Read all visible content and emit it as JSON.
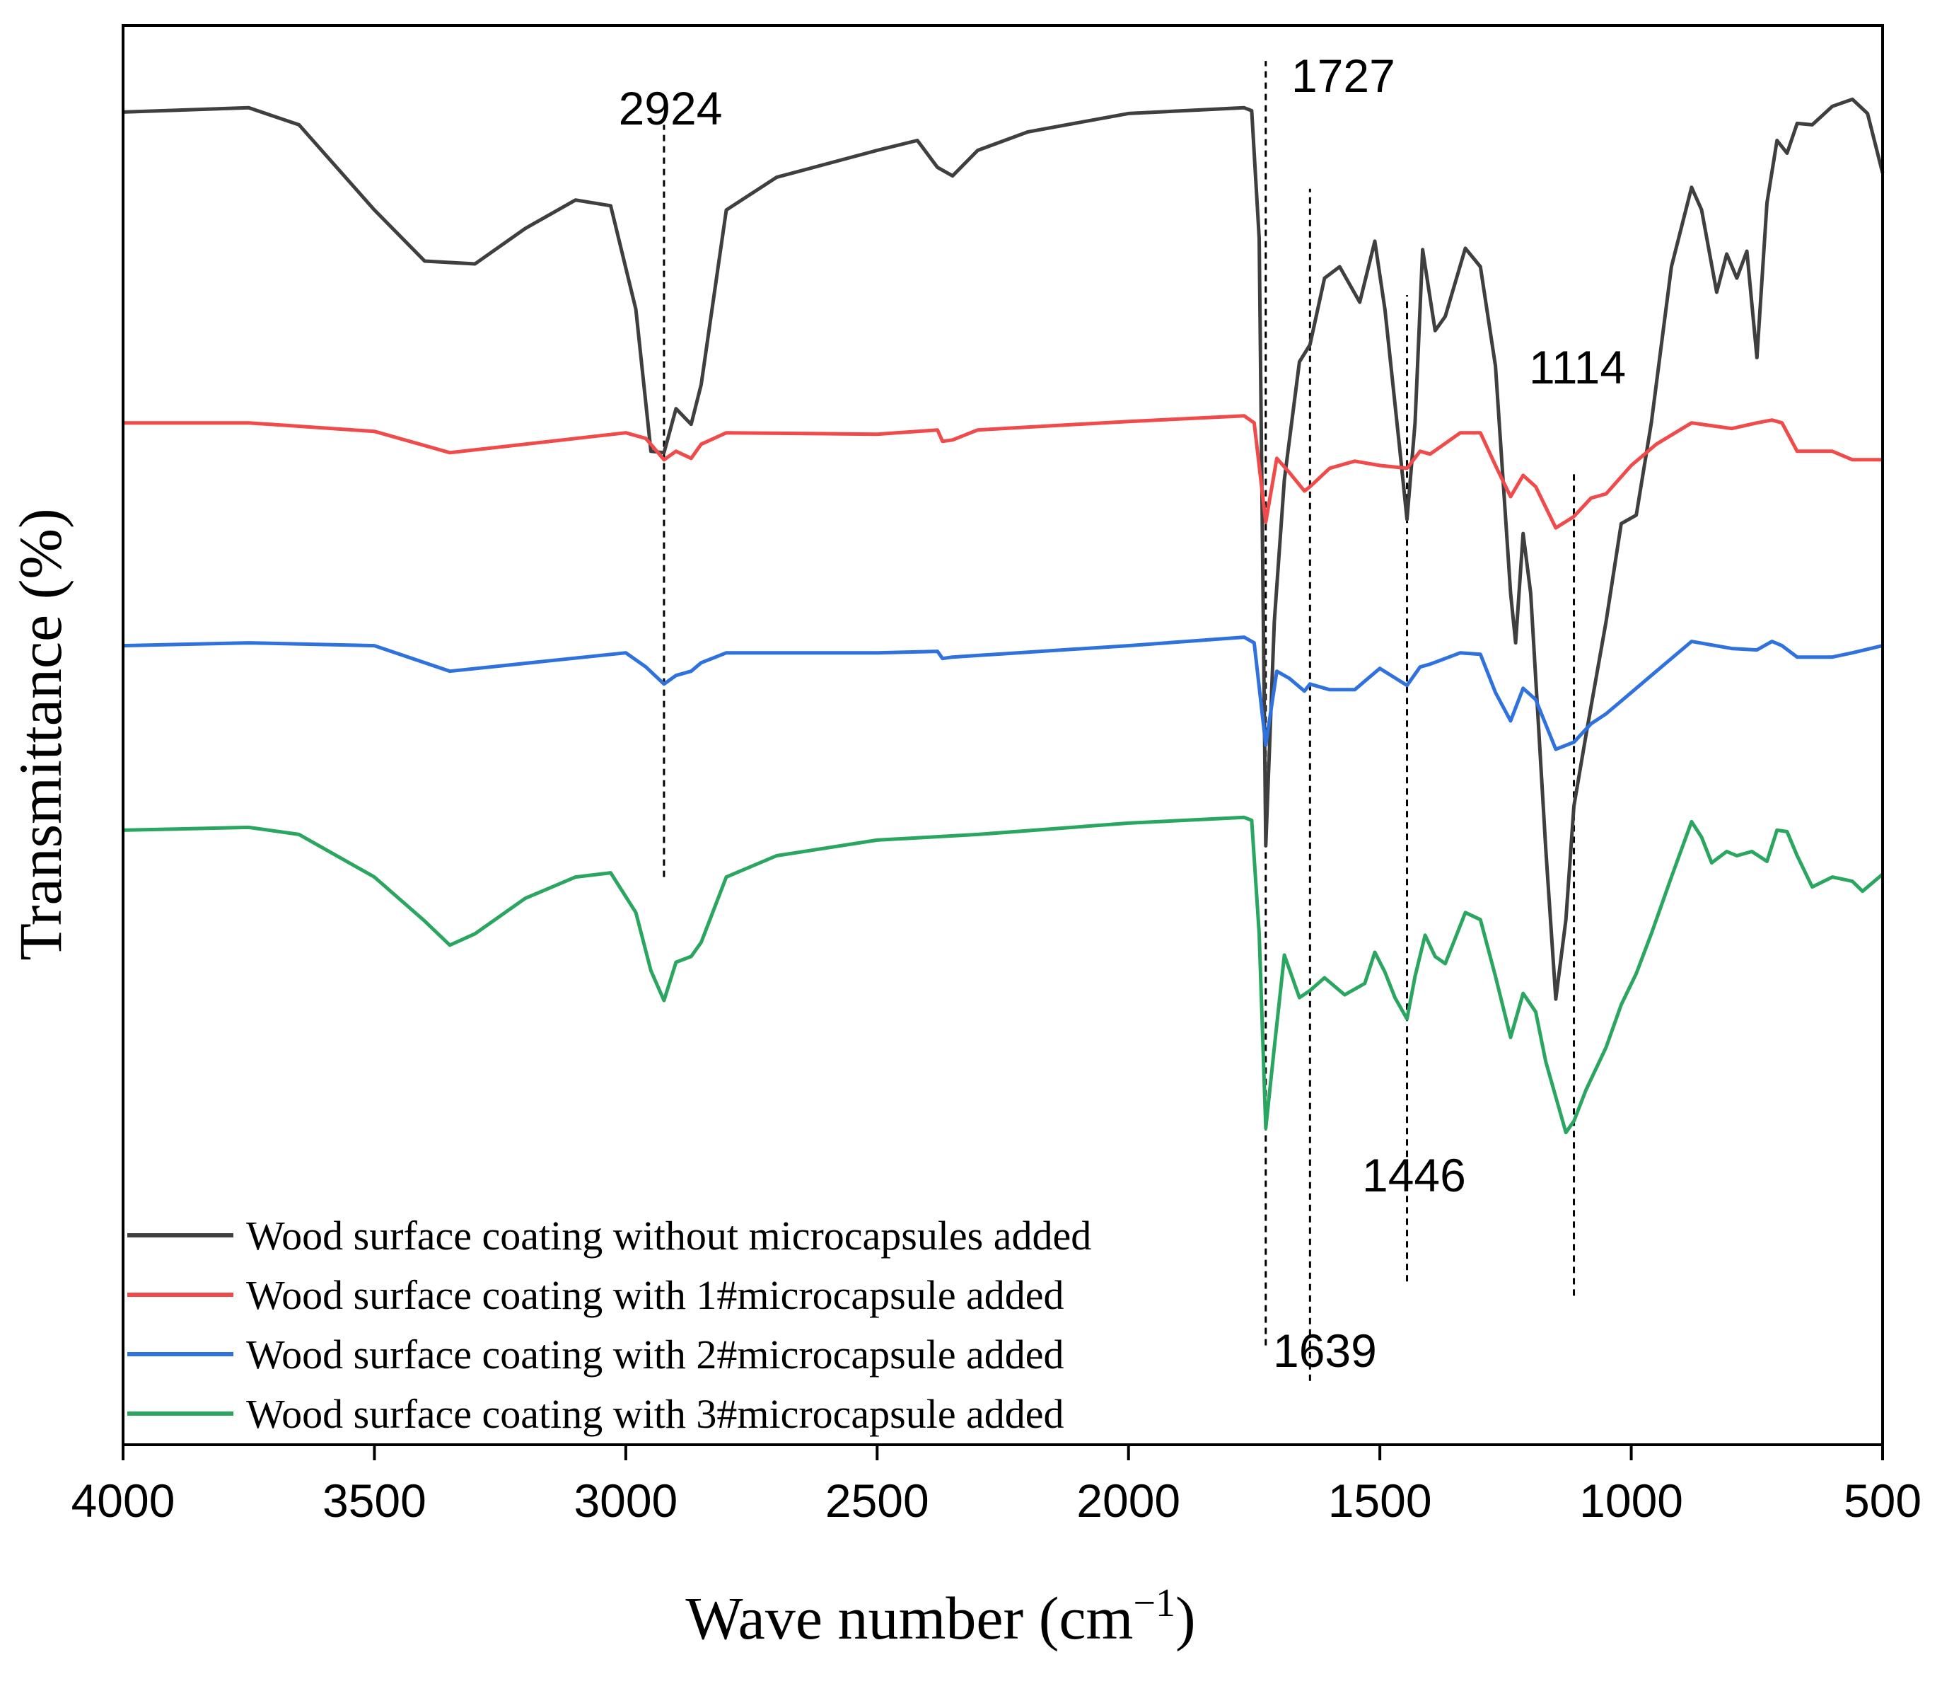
{
  "chart_data": {
    "type": "line",
    "xlabel": "Wave number (cm",
    "xlabel_sup": "−1",
    "xlabel_close": ")",
    "ylabel": "Transmittance (%)",
    "xlim": [
      4000,
      500
    ],
    "x_reversed": true,
    "xticks": [
      4000,
      3500,
      3000,
      2500,
      2000,
      1500,
      1000,
      500
    ],
    "xtick_labels": [
      "4000",
      "3500",
      "3000",
      "2500",
      "2000",
      "1500",
      "1000",
      "500"
    ],
    "ylim": [
      0,
      100
    ],
    "grid": false,
    "legend_position": "bottom-left",
    "annotations": [
      {
        "label": "2924",
        "x": 2924
      },
      {
        "label": "1727",
        "x": 1727
      },
      {
        "label": "1639",
        "x": 1639
      },
      {
        "label": "1446",
        "x": 1446
      },
      {
        "label": "1114",
        "x": 1114
      }
    ],
    "series": [
      {
        "name": "Wood surface coating without microcapsules added",
        "color": "#3f3f3f",
        "points": [
          [
            4000,
            93.9
          ],
          [
            3750,
            94.2
          ],
          [
            3650,
            93.0
          ],
          [
            3500,
            87.0
          ],
          [
            3400,
            83.4
          ],
          [
            3300,
            83.2
          ],
          [
            3200,
            85.7
          ],
          [
            3100,
            87.7
          ],
          [
            3030,
            87.3
          ],
          [
            2980,
            80.0
          ],
          [
            2950,
            70.0
          ],
          [
            2924,
            69.9
          ],
          [
            2900,
            73.0
          ],
          [
            2870,
            71.9
          ],
          [
            2850,
            74.7
          ],
          [
            2800,
            87.0
          ],
          [
            2700,
            89.3
          ],
          [
            2500,
            91.2
          ],
          [
            2420,
            91.9
          ],
          [
            2380,
            90.0
          ],
          [
            2350,
            89.4
          ],
          [
            2300,
            91.2
          ],
          [
            2200,
            92.5
          ],
          [
            2000,
            93.8
          ],
          [
            1770,
            94.2
          ],
          [
            1755,
            94.0
          ],
          [
            1740,
            85.0
          ],
          [
            1727,
            42.2
          ],
          [
            1710,
            58.0
          ],
          [
            1690,
            68.0
          ],
          [
            1660,
            76.3
          ],
          [
            1639,
            77.5
          ],
          [
            1610,
            82.2
          ],
          [
            1580,
            83.0
          ],
          [
            1540,
            80.5
          ],
          [
            1510,
            84.8
          ],
          [
            1490,
            80.0
          ],
          [
            1460,
            70.0
          ],
          [
            1446,
            65.2
          ],
          [
            1430,
            72.0
          ],
          [
            1415,
            84.2
          ],
          [
            1390,
            78.5
          ],
          [
            1370,
            79.5
          ],
          [
            1330,
            84.3
          ],
          [
            1300,
            83.0
          ],
          [
            1270,
            76.0
          ],
          [
            1240,
            60.0
          ],
          [
            1230,
            56.5
          ],
          [
            1215,
            64.2
          ],
          [
            1200,
            60.0
          ],
          [
            1170,
            42.0
          ],
          [
            1150,
            31.4
          ],
          [
            1130,
            37.0
          ],
          [
            1114,
            45.0
          ],
          [
            1090,
            50.0
          ],
          [
            1050,
            58.0
          ],
          [
            1020,
            64.9
          ],
          [
            990,
            65.5
          ],
          [
            960,
            72.0
          ],
          [
            920,
            83.0
          ],
          [
            880,
            88.6
          ],
          [
            860,
            87.0
          ],
          [
            830,
            81.2
          ],
          [
            810,
            83.9
          ],
          [
            790,
            82.2
          ],
          [
            770,
            84.1
          ],
          [
            750,
            76.6
          ],
          [
            730,
            87.5
          ],
          [
            710,
            91.9
          ],
          [
            690,
            91.0
          ],
          [
            670,
            93.1
          ],
          [
            640,
            93.0
          ],
          [
            600,
            94.3
          ],
          [
            560,
            94.8
          ],
          [
            530,
            93.8
          ],
          [
            500,
            89.6
          ]
        ]
      },
      {
        "name": "Wood surface coating with 1#microcapsule added",
        "color": "#f04a4a",
        "points": [
          [
            4000,
            72.0
          ],
          [
            3750,
            72.0
          ],
          [
            3500,
            71.4
          ],
          [
            3350,
            69.9
          ],
          [
            3000,
            71.3
          ],
          [
            2960,
            70.9
          ],
          [
            2924,
            69.4
          ],
          [
            2900,
            70.0
          ],
          [
            2870,
            69.5
          ],
          [
            2850,
            70.5
          ],
          [
            2800,
            71.3
          ],
          [
            2500,
            71.2
          ],
          [
            2380,
            71.5
          ],
          [
            2370,
            70.7
          ],
          [
            2350,
            70.8
          ],
          [
            2300,
            71.5
          ],
          [
            2000,
            72.1
          ],
          [
            1770,
            72.5
          ],
          [
            1750,
            72.0
          ],
          [
            1727,
            65.0
          ],
          [
            1705,
            69.5
          ],
          [
            1680,
            68.5
          ],
          [
            1650,
            67.2
          ],
          [
            1639,
            67.5
          ],
          [
            1600,
            68.8
          ],
          [
            1550,
            69.3
          ],
          [
            1500,
            69.0
          ],
          [
            1446,
            68.8
          ],
          [
            1420,
            70.0
          ],
          [
            1400,
            69.8
          ],
          [
            1340,
            71.3
          ],
          [
            1300,
            71.3
          ],
          [
            1270,
            69.0
          ],
          [
            1240,
            66.8
          ],
          [
            1215,
            68.3
          ],
          [
            1190,
            67.5
          ],
          [
            1150,
            64.6
          ],
          [
            1114,
            65.4
          ],
          [
            1080,
            66.7
          ],
          [
            1050,
            67.0
          ],
          [
            1000,
            69.0
          ],
          [
            950,
            70.5
          ],
          [
            880,
            72.0
          ],
          [
            800,
            71.6
          ],
          [
            750,
            72.0
          ],
          [
            720,
            72.2
          ],
          [
            700,
            72.0
          ],
          [
            670,
            70.0
          ],
          [
            600,
            70.0
          ],
          [
            560,
            69.4
          ],
          [
            500,
            69.4
          ]
        ]
      },
      {
        "name": "Wood surface coating with 2#microcapsule added",
        "color": "#2f72de",
        "points": [
          [
            4000,
            56.3
          ],
          [
            3750,
            56.5
          ],
          [
            3500,
            56.3
          ],
          [
            3350,
            54.5
          ],
          [
            3000,
            55.8
          ],
          [
            2960,
            54.8
          ],
          [
            2924,
            53.6
          ],
          [
            2900,
            54.2
          ],
          [
            2870,
            54.5
          ],
          [
            2850,
            55.1
          ],
          [
            2800,
            55.8
          ],
          [
            2500,
            55.8
          ],
          [
            2380,
            55.9
          ],
          [
            2370,
            55.4
          ],
          [
            2350,
            55.5
          ],
          [
            2000,
            56.3
          ],
          [
            1770,
            56.9
          ],
          [
            1750,
            56.5
          ],
          [
            1727,
            49.3
          ],
          [
            1705,
            54.5
          ],
          [
            1680,
            54.0
          ],
          [
            1650,
            53.1
          ],
          [
            1639,
            53.6
          ],
          [
            1600,
            53.2
          ],
          [
            1550,
            53.2
          ],
          [
            1500,
            54.7
          ],
          [
            1446,
            53.5
          ],
          [
            1420,
            54.8
          ],
          [
            1400,
            55.0
          ],
          [
            1340,
            55.8
          ],
          [
            1300,
            55.7
          ],
          [
            1270,
            53.0
          ],
          [
            1240,
            51.0
          ],
          [
            1215,
            53.3
          ],
          [
            1190,
            52.5
          ],
          [
            1150,
            49.0
          ],
          [
            1114,
            49.5
          ],
          [
            1080,
            50.8
          ],
          [
            1050,
            51.5
          ],
          [
            1000,
            53.0
          ],
          [
            950,
            54.5
          ],
          [
            900,
            56.0
          ],
          [
            880,
            56.6
          ],
          [
            800,
            56.1
          ],
          [
            750,
            56.0
          ],
          [
            720,
            56.6
          ],
          [
            700,
            56.3
          ],
          [
            670,
            55.5
          ],
          [
            600,
            55.5
          ],
          [
            560,
            55.8
          ],
          [
            500,
            56.3
          ]
        ]
      },
      {
        "name": "Wood surface coating with 3#microcapsule added",
        "color": "#2aa660",
        "points": [
          [
            4000,
            43.3
          ],
          [
            3750,
            43.5
          ],
          [
            3650,
            43.0
          ],
          [
            3500,
            40.0
          ],
          [
            3400,
            36.9
          ],
          [
            3350,
            35.2
          ],
          [
            3300,
            36.0
          ],
          [
            3200,
            38.5
          ],
          [
            3100,
            40.0
          ],
          [
            3030,
            40.3
          ],
          [
            2980,
            37.5
          ],
          [
            2950,
            33.4
          ],
          [
            2924,
            31.3
          ],
          [
            2900,
            34.0
          ],
          [
            2870,
            34.4
          ],
          [
            2850,
            35.4
          ],
          [
            2800,
            40.0
          ],
          [
            2700,
            41.5
          ],
          [
            2500,
            42.6
          ],
          [
            2300,
            43.0
          ],
          [
            2000,
            43.8
          ],
          [
            1770,
            44.2
          ],
          [
            1755,
            44.0
          ],
          [
            1740,
            36.0
          ],
          [
            1727,
            22.3
          ],
          [
            1710,
            28.0
          ],
          [
            1690,
            34.5
          ],
          [
            1660,
            31.5
          ],
          [
            1639,
            32.0
          ],
          [
            1610,
            32.9
          ],
          [
            1570,
            31.7
          ],
          [
            1530,
            32.5
          ],
          [
            1510,
            34.7
          ],
          [
            1490,
            33.3
          ],
          [
            1470,
            31.5
          ],
          [
            1446,
            30.0
          ],
          [
            1430,
            33.0
          ],
          [
            1410,
            35.9
          ],
          [
            1390,
            34.4
          ],
          [
            1370,
            33.9
          ],
          [
            1330,
            37.5
          ],
          [
            1300,
            37.0
          ],
          [
            1270,
            33.0
          ],
          [
            1240,
            28.7
          ],
          [
            1215,
            31.8
          ],
          [
            1190,
            30.5
          ],
          [
            1170,
            27.0
          ],
          [
            1150,
            24.5
          ],
          [
            1130,
            22.0
          ],
          [
            1114,
            22.8
          ],
          [
            1090,
            25.0
          ],
          [
            1050,
            28.0
          ],
          [
            1020,
            31.0
          ],
          [
            990,
            33.2
          ],
          [
            960,
            36.0
          ],
          [
            920,
            40.0
          ],
          [
            880,
            43.9
          ],
          [
            860,
            42.8
          ],
          [
            840,
            41.0
          ],
          [
            810,
            41.8
          ],
          [
            790,
            41.5
          ],
          [
            760,
            41.8
          ],
          [
            730,
            41.1
          ],
          [
            710,
            43.3
          ],
          [
            690,
            43.2
          ],
          [
            670,
            41.5
          ],
          [
            640,
            39.3
          ],
          [
            600,
            40.0
          ],
          [
            560,
            39.7
          ],
          [
            540,
            39.0
          ],
          [
            500,
            40.2
          ]
        ]
      }
    ]
  }
}
